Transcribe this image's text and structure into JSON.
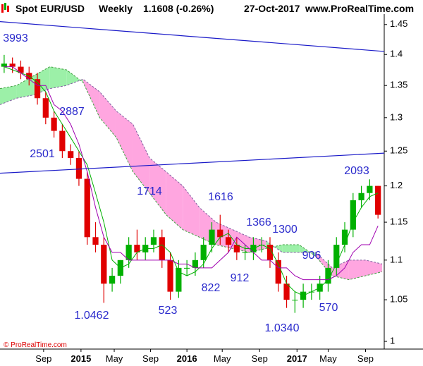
{
  "chart_data": {
    "type": "candlestick",
    "title": "Spot EUR/USD",
    "period": "Weekly",
    "quote": "1.1608 (-0.26%)",
    "date": "27-Oct-2017",
    "source": "www.ProRealTime.com",
    "copyright": "© ProRealTime.com",
    "log_scale": true,
    "xlim": [
      0,
      185
    ],
    "xticks": [
      {
        "value": 21,
        "label": "Sep"
      },
      {
        "value": 39,
        "label": "2015"
      },
      {
        "value": 55,
        "label": "May"
      },
      {
        "value": 72.5,
        "label": "Sep"
      },
      {
        "value": 90,
        "label": "2016"
      },
      {
        "value": 107,
        "label": "May"
      },
      {
        "value": 125,
        "label": "Sep"
      },
      {
        "value": 143,
        "label": "2017"
      },
      {
        "value": 158,
        "label": "May"
      },
      {
        "value": 176,
        "label": "Sep"
      }
    ],
    "ylim": [
      0.991,
      1.463
    ],
    "yticks": [
      1.45,
      1.4,
      1.35,
      1.3,
      1.25,
      1.2,
      1.15,
      1.1,
      1.05,
      1
    ],
    "up_color": "#00b000",
    "down_color": "#e00000",
    "x": [
      2,
      6,
      10,
      14,
      18,
      22,
      26,
      30,
      34,
      38,
      42,
      46,
      50,
      54,
      58,
      62,
      66,
      70,
      74,
      78,
      82,
      86,
      90,
      94,
      98,
      102,
      106,
      110,
      114,
      118,
      122,
      126,
      130,
      134,
      138,
      142,
      146,
      150,
      154,
      158,
      162,
      166,
      170,
      174,
      178,
      182
    ],
    "open": [
      1.38,
      1.385,
      1.38,
      1.37,
      1.36,
      1.33,
      1.3,
      1.28,
      1.25,
      1.24,
      1.21,
      1.13,
      1.12,
      1.07,
      1.08,
      1.1,
      1.12,
      1.11,
      1.12,
      1.13,
      1.1,
      1.06,
      1.09,
      1.09,
      1.1,
      1.12,
      1.14,
      1.13,
      1.12,
      1.11,
      1.11,
      1.12,
      1.12,
      1.1,
      1.07,
      1.05,
      1.05,
      1.06,
      1.06,
      1.07,
      1.09,
      1.12,
      1.14,
      1.18,
      1.19,
      1.2
    ],
    "high": [
      1.3993,
      1.395,
      1.39,
      1.38,
      1.37,
      1.34,
      1.31,
      1.29,
      1.26,
      1.25,
      1.22,
      1.15,
      1.13,
      1.09,
      1.1,
      1.13,
      1.14,
      1.13,
      1.14,
      1.14,
      1.11,
      1.1,
      1.1,
      1.11,
      1.13,
      1.15,
      1.16,
      1.14,
      1.13,
      1.12,
      1.13,
      1.13,
      1.13,
      1.11,
      1.08,
      1.06,
      1.07,
      1.07,
      1.08,
      1.1,
      1.13,
      1.15,
      1.19,
      1.2,
      1.2093,
      1.2
    ],
    "low": [
      1.37,
      1.37,
      1.36,
      1.35,
      1.32,
      1.29,
      1.27,
      1.24,
      1.23,
      1.2,
      1.12,
      1.11,
      1.0462,
      1.06,
      1.07,
      1.09,
      1.1,
      1.1,
      1.11,
      1.09,
      1.05,
      1.0523,
      1.08,
      1.08,
      1.09,
      1.11,
      1.12,
      1.11,
      1.1,
      1.1,
      1.1,
      1.11,
      1.09,
      1.06,
      1.04,
      1.034,
      1.04,
      1.05,
      1.05,
      1.06,
      1.08,
      1.11,
      1.13,
      1.17,
      1.18,
      1.155
    ],
    "close": [
      1.385,
      1.38,
      1.37,
      1.36,
      1.33,
      1.3,
      1.28,
      1.25,
      1.24,
      1.21,
      1.13,
      1.12,
      1.07,
      1.08,
      1.1,
      1.12,
      1.11,
      1.12,
      1.13,
      1.1,
      1.06,
      1.09,
      1.09,
      1.1,
      1.12,
      1.14,
      1.13,
      1.12,
      1.11,
      1.11,
      1.12,
      1.12,
      1.1,
      1.07,
      1.05,
      1.05,
      1.06,
      1.06,
      1.07,
      1.09,
      1.12,
      1.14,
      1.18,
      1.19,
      1.2,
      1.16
    ],
    "indicators": [
      {
        "color": "#00b000",
        "values": [
          1.38,
          1.375,
          1.37,
          1.365,
          1.355,
          1.34,
          1.31,
          1.29,
          1.27,
          1.25,
          1.23,
          1.19,
          1.15,
          1.1,
          1.09,
          1.095,
          1.11,
          1.115,
          1.115,
          1.12,
          1.11,
          1.085,
          1.08,
          1.085,
          1.095,
          1.115,
          1.13,
          1.135,
          1.12,
          1.115,
          1.115,
          1.12,
          1.115,
          1.095,
          1.07,
          1.06,
          1.055,
          1.06,
          1.065,
          1.075,
          1.095,
          1.12,
          1.15,
          1.17,
          1.185,
          1.19
        ]
      },
      {
        "color": "#a000b0",
        "values": [
          1.38,
          1.38,
          1.37,
          1.36,
          1.35,
          1.35,
          1.32,
          1.31,
          1.29,
          1.26,
          1.22,
          1.17,
          1.13,
          1.11,
          1.11,
          1.1,
          1.1,
          1.1,
          1.1,
          1.1,
          1.1,
          1.095,
          1.095,
          1.09,
          1.09,
          1.09,
          1.1,
          1.11,
          1.13,
          1.12,
          1.11,
          1.1,
          1.1,
          1.09,
          1.09,
          1.08,
          1.075,
          1.075,
          1.075,
          1.075,
          1.08,
          1.09,
          1.11,
          1.12,
          1.12,
          1.145
        ]
      }
    ],
    "cloud": {
      "x": [
        0,
        8,
        16,
        24,
        32,
        40,
        48,
        56,
        64,
        72,
        80,
        88,
        96,
        104,
        112,
        120,
        128,
        136,
        144,
        152,
        160,
        168,
        176,
        184
      ],
      "span_a": [
        1.345,
        1.35,
        1.365,
        1.38,
        1.375,
        1.355,
        1.3,
        1.27,
        1.22,
        1.19,
        1.16,
        1.14,
        1.13,
        1.12,
        1.115,
        1.11,
        1.115,
        1.12,
        1.12,
        1.105,
        1.08,
        1.075,
        1.08,
        1.085
      ],
      "span_b": [
        1.32,
        1.33,
        1.335,
        1.345,
        1.35,
        1.36,
        1.34,
        1.31,
        1.29,
        1.24,
        1.22,
        1.2,
        1.17,
        1.15,
        1.14,
        1.13,
        1.125,
        1.11,
        1.11,
        1.11,
        1.09,
        1.1,
        1.1,
        1.095
      ],
      "up_color": "#9cf0a8",
      "down_color": "#ffa6e0"
    },
    "trendlines": [
      {
        "color": "#1a1ac8",
        "x": [
          0,
          185
        ],
        "values": [
          1.455,
          1.405
        ]
      },
      {
        "color": "#1a1ac8",
        "x": [
          0,
          185
        ],
        "values": [
          1.218,
          1.247
        ]
      }
    ],
    "annotations": [
      "3993",
      "2887",
      "2501",
      "1714",
      "1616",
      "1366",
      "1300",
      "906",
      "912",
      "822",
      "523",
      "570",
      "1.0462",
      "1.0340",
      "2093"
    ]
  }
}
